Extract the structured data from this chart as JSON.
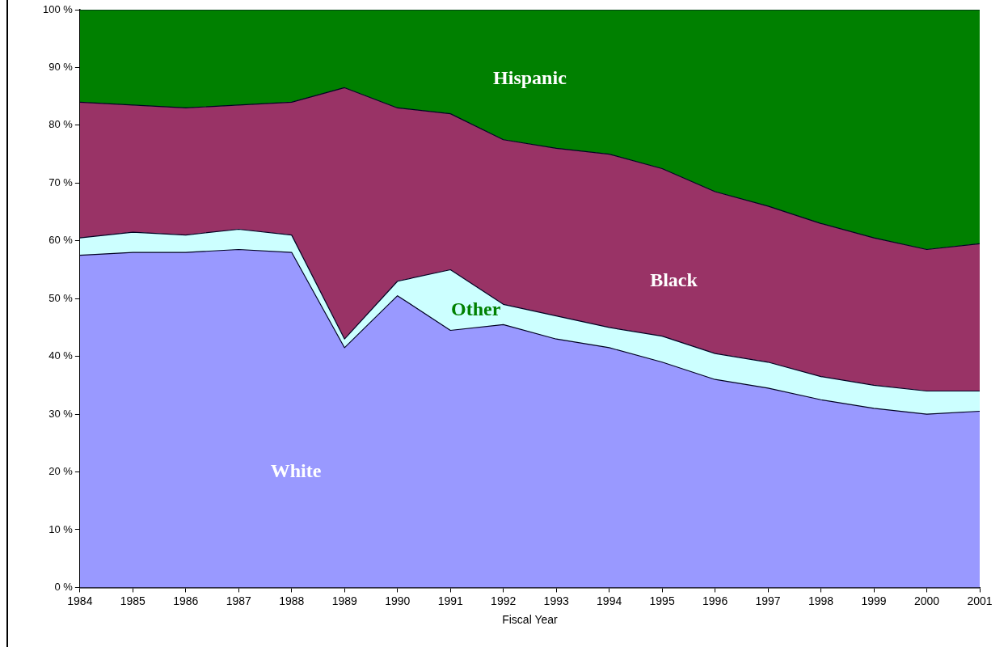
{
  "chart_data": {
    "type": "area",
    "stacked": true,
    "xlabel": "Fiscal Year",
    "x": [
      1984,
      1985,
      1986,
      1987,
      1988,
      1989,
      1990,
      1991,
      1992,
      1993,
      1994,
      1995,
      1996,
      1997,
      1998,
      1999,
      2000,
      2001
    ],
    "xlim": [
      1984,
      2001
    ],
    "xticks": [
      1984,
      1985,
      1986,
      1987,
      1988,
      1989,
      1990,
      1991,
      1992,
      1993,
      1994,
      1995,
      1996,
      1997,
      1998,
      1999,
      2000,
      2001
    ],
    "ylim": [
      0,
      100
    ],
    "yticks": [
      {
        "value": 0,
        "label": "0 %"
      },
      {
        "value": 10,
        "label": "10 %"
      },
      {
        "value": 20,
        "label": "20 %"
      },
      {
        "value": 30,
        "label": "30 %"
      },
      {
        "value": 40,
        "label": "40 %"
      },
      {
        "value": 50,
        "label": "50 %"
      },
      {
        "value": 60,
        "label": "60 %"
      },
      {
        "value": 70,
        "label": "70 %"
      },
      {
        "value": 80,
        "label": "80 %"
      },
      {
        "value": 90,
        "label": "90 %"
      },
      {
        "value": 100,
        "label": "100 %"
      }
    ],
    "series": [
      {
        "name": "White",
        "color": "#9999ff",
        "values": [
          57.5,
          58,
          58,
          58.5,
          58,
          41.5,
          50.5,
          44.5,
          45.5,
          43,
          41.5,
          39,
          36,
          34.5,
          32.5,
          31,
          30,
          30.5
        ]
      },
      {
        "name": "Other",
        "color": "#ccffff",
        "values": [
          3,
          3.5,
          3,
          3.5,
          3,
          1.5,
          2.5,
          10.5,
          3.5,
          4,
          3.5,
          4.5,
          4.5,
          4.5,
          4,
          4,
          4,
          3.5
        ]
      },
      {
        "name": "Black",
        "color": "#993366",
        "values": [
          23.5,
          22,
          22,
          21.5,
          23,
          43.5,
          30,
          27,
          28.5,
          29,
          30,
          29,
          28,
          27,
          26.5,
          25.5,
          24.5,
          25.5
        ]
      },
      {
        "name": "Hispanic",
        "color": "#008000",
        "values": [
          16,
          16.5,
          17,
          16.5,
          16,
          13.5,
          17,
          18,
          22.5,
          24,
          25,
          27.5,
          31.5,
          34,
          37,
          39.5,
          41.5,
          40.5
        ]
      }
    ],
    "grid": false,
    "legend": false
  }
}
